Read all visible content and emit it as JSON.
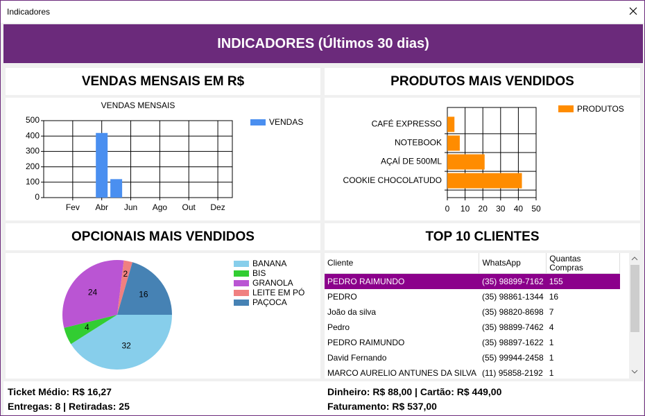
{
  "window": {
    "title": "Indicadores"
  },
  "header": {
    "title": "INDICADORES (Últimos 30 dias)"
  },
  "panels": [
    "VENDAS MENSAIS EM R$",
    "PRODUTOS MAIS VENDIDOS",
    "OPCIONAIS MAIS VENDIDOS",
    "TOP 10 CLIENTES"
  ],
  "chart_data": [
    {
      "type": "bar",
      "title": "VENDAS MENSAIS",
      "categories": [
        null,
        "Fev",
        null,
        "Abr",
        null,
        "Jun",
        null,
        "Ago",
        null,
        "Out",
        null,
        "Dez"
      ],
      "series": [
        {
          "name": "VENDAS",
          "color": "#4a8ff0",
          "values": [
            null,
            null,
            null,
            420,
            120,
            null,
            null,
            null,
            null,
            null,
            null,
            null
          ]
        }
      ],
      "ylim": [
        0,
        500
      ],
      "yticks": [
        0,
        100,
        200,
        300,
        400,
        500
      ],
      "grid": true
    },
    {
      "type": "barh",
      "categories": [
        "CAFÉ EXPRESSO",
        "NOTEBOOK",
        "AÇAÍ DE 500ML",
        "COOKIE CHOCOLATUDO"
      ],
      "series": [
        {
          "name": "PRODUTOS",
          "color": "#ff8c00",
          "values": [
            4,
            7,
            21,
            42
          ]
        }
      ],
      "xlim": [
        0,
        50
      ],
      "xticks": [
        0,
        10,
        20,
        30,
        40,
        50
      ],
      "grid": true
    },
    {
      "type": "pie",
      "categories": [
        "BANANA",
        "BIS",
        "GRANOLA",
        "LEITE EM PÓ",
        "PAÇOCA"
      ],
      "values": [
        32,
        4,
        24,
        2,
        16
      ],
      "colors": [
        "#87ceeb",
        "#32cd32",
        "#ba55d3",
        "#f08080",
        "#4682b4"
      ]
    }
  ],
  "clients_table": {
    "columns": [
      "Cliente",
      "WhatsApp",
      "Quantas Compras"
    ],
    "rows": [
      [
        "PEDRO RAIMUNDO",
        "(35) 98899-7162",
        155
      ],
      [
        "PEDRO",
        "(35) 98861-1344",
        16
      ],
      [
        "João da silva",
        "(35) 98820-8698",
        7
      ],
      [
        "Pedro",
        "(35) 98899-7462",
        4
      ],
      [
        "PEDRO RAIMUNDO",
        "(35) 98897-1622",
        1
      ],
      [
        "David Fernando",
        "(55) 99944-2458",
        1
      ],
      [
        "MARCO AURELIO ANTUNES DA SILVA",
        "(11) 95858-2192",
        1
      ]
    ]
  },
  "footer": {
    "ticket": "Ticket Médio: R$ 16,27",
    "deliveries": "Entregas: 8 | Retiradas: 25",
    "payments": "Dinheiro: R$ 88,00 | Cartão: R$ 449,00",
    "revenue": "Faturamento: R$ 537,00"
  }
}
